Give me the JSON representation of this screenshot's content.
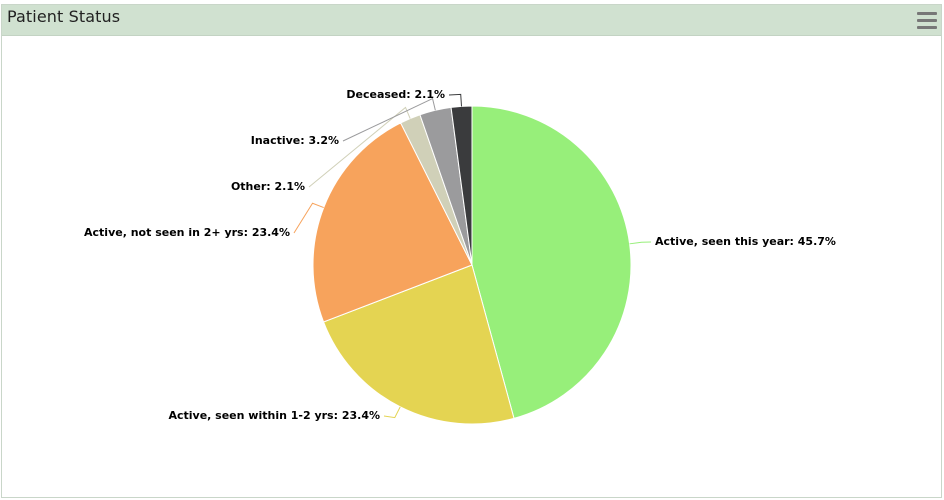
{
  "panel": {
    "title": "Patient Status",
    "menu_icon": "hamburger-menu-icon"
  },
  "chart_data": {
    "type": "pie",
    "legend": "none",
    "slices": [
      {
        "label": "Active, seen this year",
        "value": 45.7,
        "display": "45.7%",
        "color": "#97ef7a"
      },
      {
        "label": "Active, seen within 1-2 yrs",
        "value": 23.4,
        "display": "23.4%",
        "color": "#e4d452"
      },
      {
        "label": "Active, not seen in 2+ yrs",
        "value": 23.4,
        "display": "23.4%",
        "color": "#f7a35c"
      },
      {
        "label": "Other",
        "value": 2.1,
        "display": "2.1%",
        "color": "#d0d0b8"
      },
      {
        "label": "Inactive",
        "value": 3.2,
        "display": "3.2%",
        "color": "#9b9b9d"
      },
      {
        "label": "Deceased",
        "value": 2.1,
        "display": "2.1%",
        "color": "#3a3b3d"
      }
    ]
  }
}
